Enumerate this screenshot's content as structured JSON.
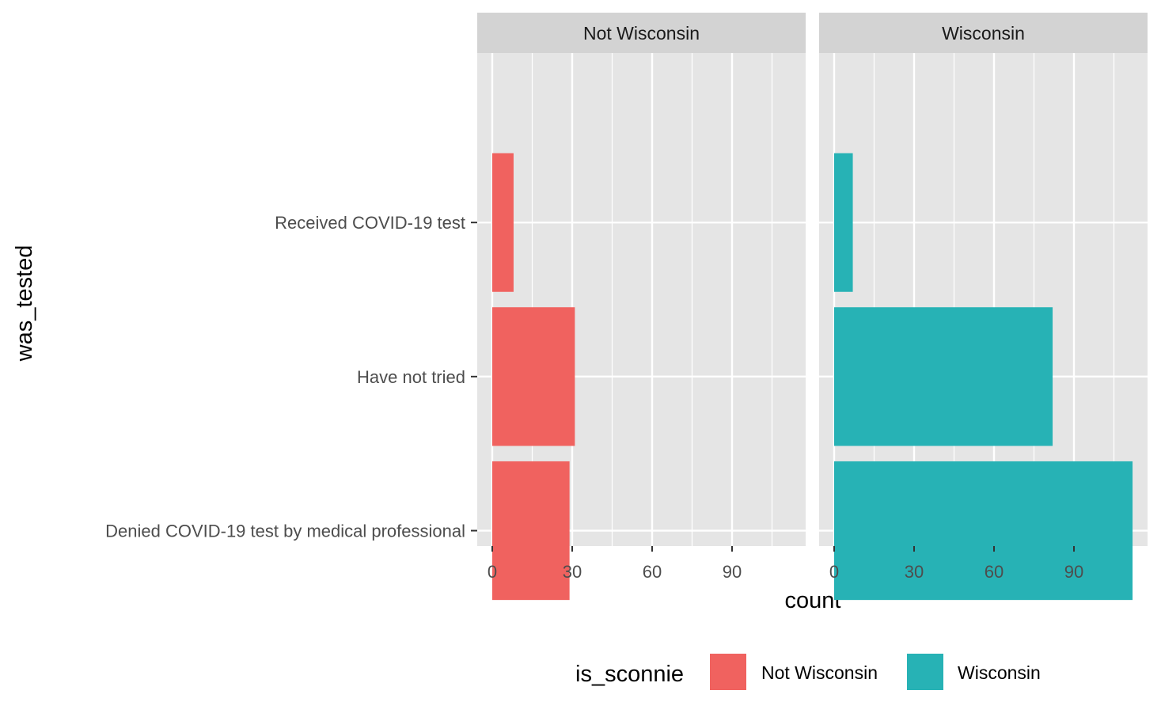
{
  "chart_data": {
    "type": "bar",
    "orientation": "horizontal",
    "xlabel": "count",
    "ylabel": "was_tested",
    "categories": [
      "Received COVID-19 test",
      "Have not tried",
      "Denied COVID-19 test by medical professional"
    ],
    "xlim": [
      0,
      112
    ],
    "xticks": [
      0,
      30,
      60,
      90
    ],
    "grid": true,
    "facets": [
      {
        "label": "Not Wisconsin",
        "fill": "#F8766D",
        "values": [
          8,
          31,
          29
        ]
      },
      {
        "label": "Wisconsin",
        "fill": "#00BFC4",
        "values": [
          7,
          82,
          112
        ]
      }
    ],
    "legend": {
      "title": "is_sconnie",
      "position": "bottom",
      "entries": [
        {
          "label": "Not Wisconsin",
          "color": "#F8766D"
        },
        {
          "label": "Wisconsin",
          "color": "#00BFC4"
        }
      ]
    }
  },
  "colors": {
    "panel_background": "#E5E5E5",
    "strip_background": "#D3D3D3",
    "gridline": "#FFFFFF",
    "bar_fill_1": "#F0625F",
    "bar_fill_2": "#27B2B5"
  }
}
